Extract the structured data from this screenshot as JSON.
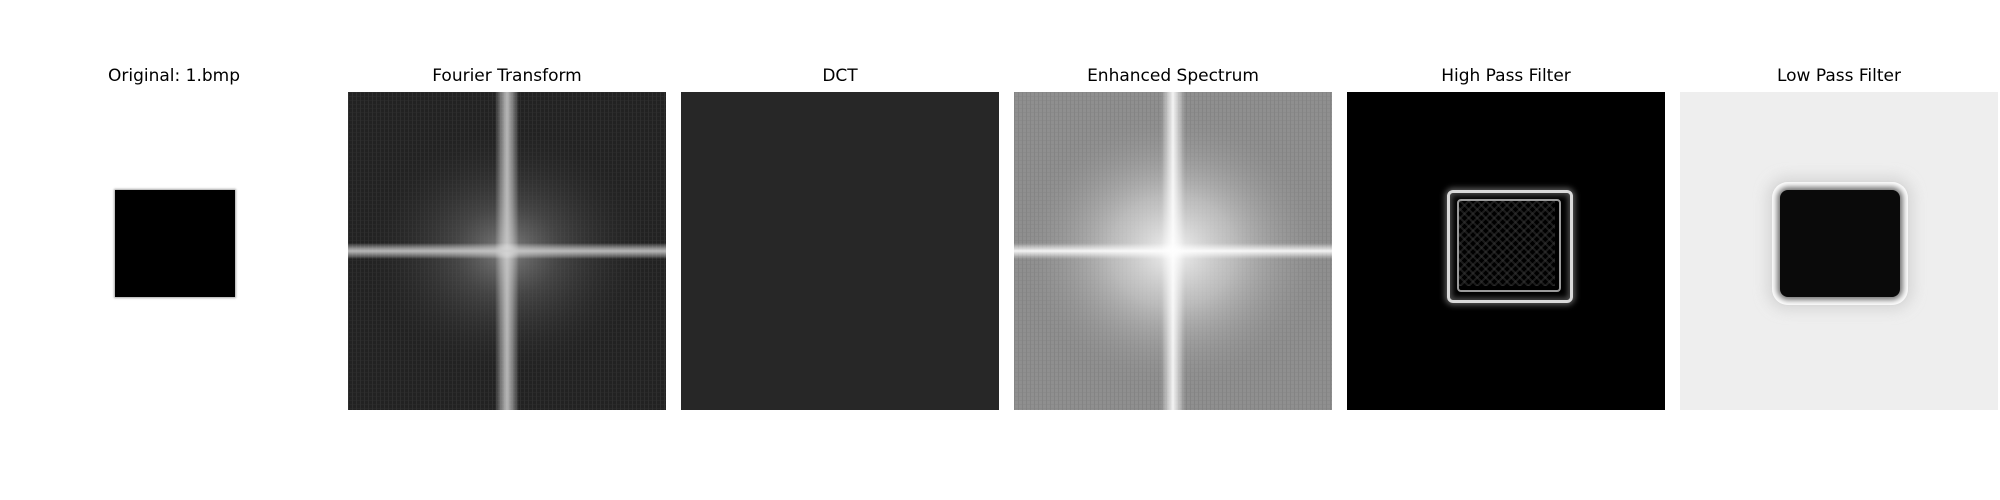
{
  "figure": {
    "panels": [
      {
        "id": "original",
        "title": "Original: 1.bmp"
      },
      {
        "id": "fourier",
        "title": "Fourier Transform"
      },
      {
        "id": "dct",
        "title": "DCT"
      },
      {
        "id": "enhanced",
        "title": "Enhanced Spectrum"
      },
      {
        "id": "highpass",
        "title": "High Pass Filter"
      },
      {
        "id": "lowpass",
        "title": "Low Pass Filter"
      }
    ]
  },
  "colors": {
    "background": "#ffffff",
    "fourier_bg": "#202020",
    "dct_bg": "#272727",
    "enhanced_bg": "#8d8d8d",
    "highpass_bg": "#000000",
    "lowpass_bg": "#eeeeee"
  }
}
